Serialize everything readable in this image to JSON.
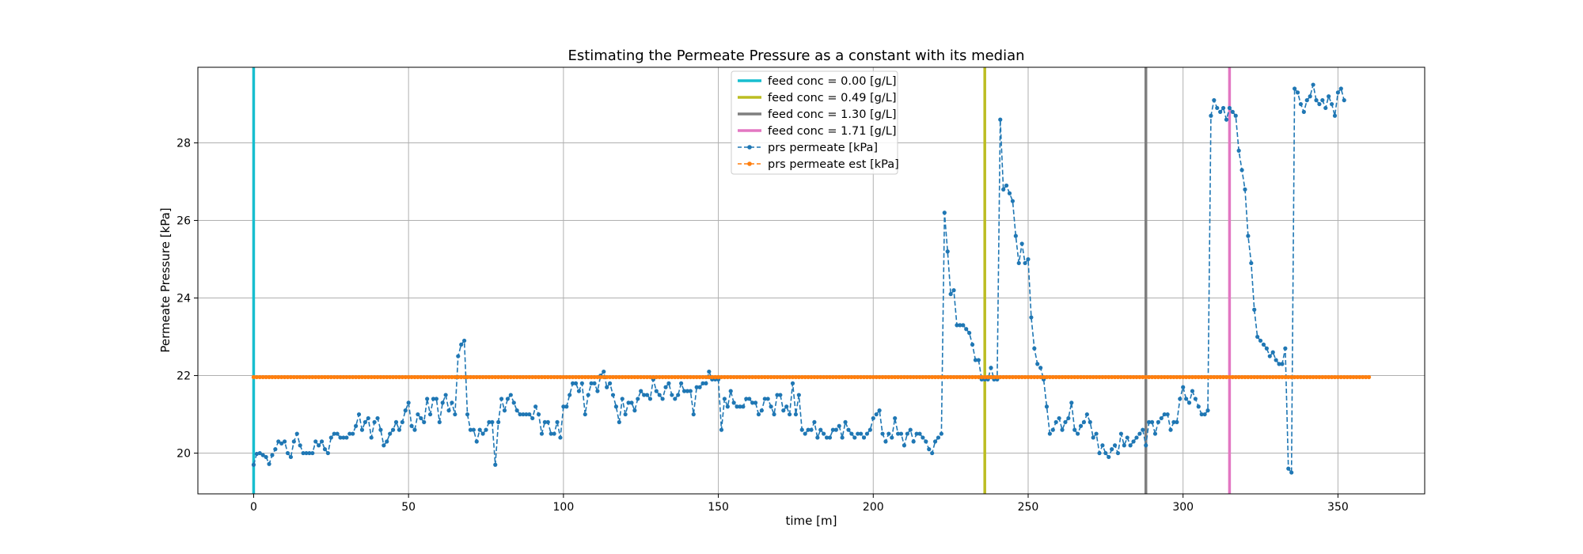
{
  "chart_data": {
    "type": "line",
    "title": "Estimating the Permeate Pressure as a constant with its median",
    "xlabel": "time [m]",
    "ylabel": "Permeate Pressure [kPa]",
    "xlim": [
      -18,
      378
    ],
    "ylim": [
      18.95,
      29.95
    ],
    "xticks": [
      0,
      50,
      100,
      150,
      200,
      250,
      300,
      350
    ],
    "yticks": [
      20,
      22,
      24,
      26,
      28
    ],
    "grid": true,
    "legend_position": "top-center",
    "vlines": [
      {
        "name": "feed conc = 0.00 [g/L]",
        "x": 0,
        "color": "#17becf"
      },
      {
        "name": "feed conc = 0.49 [g/L]",
        "x": 236,
        "color": "#bcbd22"
      },
      {
        "name": "feed conc = 1.30 [g/L]",
        "x": 288,
        "color": "#7f7f7f"
      },
      {
        "name": "feed conc = 1.71 [g/L]",
        "x": 315,
        "color": "#e377c2"
      }
    ],
    "series": [
      {
        "name": "prs permeate [kPa]",
        "color": "#1f77b4",
        "style": "dashed-dot-marker",
        "x_start": 0,
        "x_step": 1,
        "values": [
          19.7,
          19.98,
          20,
          19.95,
          19.9,
          19.72,
          19.95,
          20.1,
          20.3,
          20.25,
          20.3,
          20.0,
          19.9,
          20.3,
          20.5,
          20.2,
          20.0,
          20.0,
          20.0,
          20.0,
          20.3,
          20.2,
          20.3,
          20.1,
          20.0,
          20.4,
          20.5,
          20.5,
          20.4,
          20.4,
          20.4,
          20.5,
          20.5,
          20.7,
          21.0,
          20.6,
          20.8,
          20.9,
          20.4,
          20.8,
          20.9,
          20.6,
          20.2,
          20.3,
          20.5,
          20.6,
          20.8,
          20.6,
          20.8,
          21.1,
          21.3,
          20.7,
          20.6,
          21.0,
          20.9,
          20.8,
          21.4,
          21.0,
          21.4,
          21.4,
          20.8,
          21.3,
          21.5,
          21.1,
          21.3,
          21.0,
          22.5,
          22.8,
          22.9,
          21.0,
          20.6,
          20.6,
          20.3,
          20.6,
          20.5,
          20.6,
          20.8,
          20.8,
          19.7,
          20.8,
          21.4,
          21.1,
          21.4,
          21.5,
          21.3,
          21.1,
          21.0,
          21.0,
          21.0,
          21.0,
          20.9,
          21.2,
          21.0,
          20.5,
          20.8,
          20.8,
          20.5,
          20.5,
          20.8,
          20.4,
          21.2,
          21.2,
          21.5,
          21.8,
          21.8,
          21.6,
          21.8,
          21.0,
          21.5,
          21.8,
          21.8,
          21.6,
          22.0,
          22.1,
          21.7,
          21.8,
          21.5,
          21.2,
          20.8,
          21.4,
          21.0,
          21.3,
          21.3,
          21.1,
          21.4,
          21.6,
          21.5,
          21.5,
          21.4,
          21.9,
          21.6,
          21.5,
          21.4,
          21.7,
          21.8,
          21.5,
          21.4,
          21.5,
          21.8,
          21.6,
          21.6,
          21.6,
          21.0,
          21.7,
          21.7,
          21.8,
          21.8,
          22.1,
          21.9,
          21.9,
          21.9,
          20.6,
          21.4,
          21.2,
          21.6,
          21.3,
          21.2,
          21.2,
          21.2,
          21.4,
          21.4,
          21.3,
          21.3,
          21.0,
          21.1,
          21.4,
          21.4,
          21.2,
          21.0,
          21.5,
          21.5,
          21.1,
          21.2,
          21.0,
          21.8,
          21.0,
          21.5,
          20.6,
          20.5,
          20.6,
          20.6,
          20.8,
          20.4,
          20.6,
          20.5,
          20.4,
          20.4,
          20.6,
          20.6,
          20.7,
          20.4,
          20.8,
          20.6,
          20.5,
          20.4,
          20.5,
          20.5,
          20.4,
          20.5,
          20.6,
          20.9,
          21.0,
          21.1,
          20.5,
          20.3,
          20.5,
          20.4,
          20.9,
          20.5,
          20.5,
          20.2,
          20.5,
          20.6,
          20.3,
          20.5,
          20.5,
          20.4,
          20.3,
          20.1,
          20.0,
          20.3,
          20.4,
          20.5,
          26.2,
          25.2,
          24.1,
          24.2,
          23.3,
          23.3,
          23.3,
          23.2,
          23.1,
          22.8,
          22.4,
          22.4,
          21.9,
          21.9,
          21.9,
          22.2,
          21.9,
          21.9,
          28.6,
          26.8,
          26.9,
          26.7,
          26.5,
          25.6,
          24.9,
          25.4,
          24.9,
          25.0,
          23.5,
          22.7,
          22.3,
          22.2,
          21.9,
          21.2,
          20.5,
          20.6,
          20.8,
          20.9,
          20.6,
          20.8,
          20.9,
          21.3,
          20.6,
          20.5,
          20.7,
          20.8,
          21.0,
          20.8,
          20.4,
          20.5,
          20.0,
          20.2,
          20.0,
          19.9,
          20.1,
          20.2,
          20.0,
          20.5,
          20.2,
          20.4,
          20.2,
          20.3,
          20.4,
          20.5,
          20.6,
          20.2,
          20.8,
          20.8,
          20.5,
          20.8,
          20.9,
          21.0,
          21.0,
          20.6,
          20.8,
          20.8,
          21.4,
          21.7,
          21.4,
          21.3,
          21.6,
          21.4,
          21.2,
          21.0,
          21.0,
          21.1,
          28.7,
          29.1,
          28.9,
          28.8,
          28.9,
          28.6,
          28.9,
          28.8,
          28.7,
          27.8,
          27.3,
          26.8,
          25.6,
          24.9,
          23.7,
          23.0,
          22.9,
          22.8,
          22.7,
          22.5,
          22.6,
          22.4,
          22.3,
          22.3,
          22.7,
          19.6,
          19.5,
          29.4,
          29.3,
          29.0,
          28.8,
          29.1,
          29.2,
          29.5,
          29.1,
          29.0,
          29.1,
          28.9,
          29.2,
          29.0,
          28.7,
          29.3,
          29.4,
          29.1
        ]
      },
      {
        "name": "prs permeate est [kPa]",
        "color": "#ff7f0e",
        "style": "dashed-dot-marker",
        "x_start": 0,
        "x_end": 360,
        "constant": 21.96
      }
    ]
  }
}
